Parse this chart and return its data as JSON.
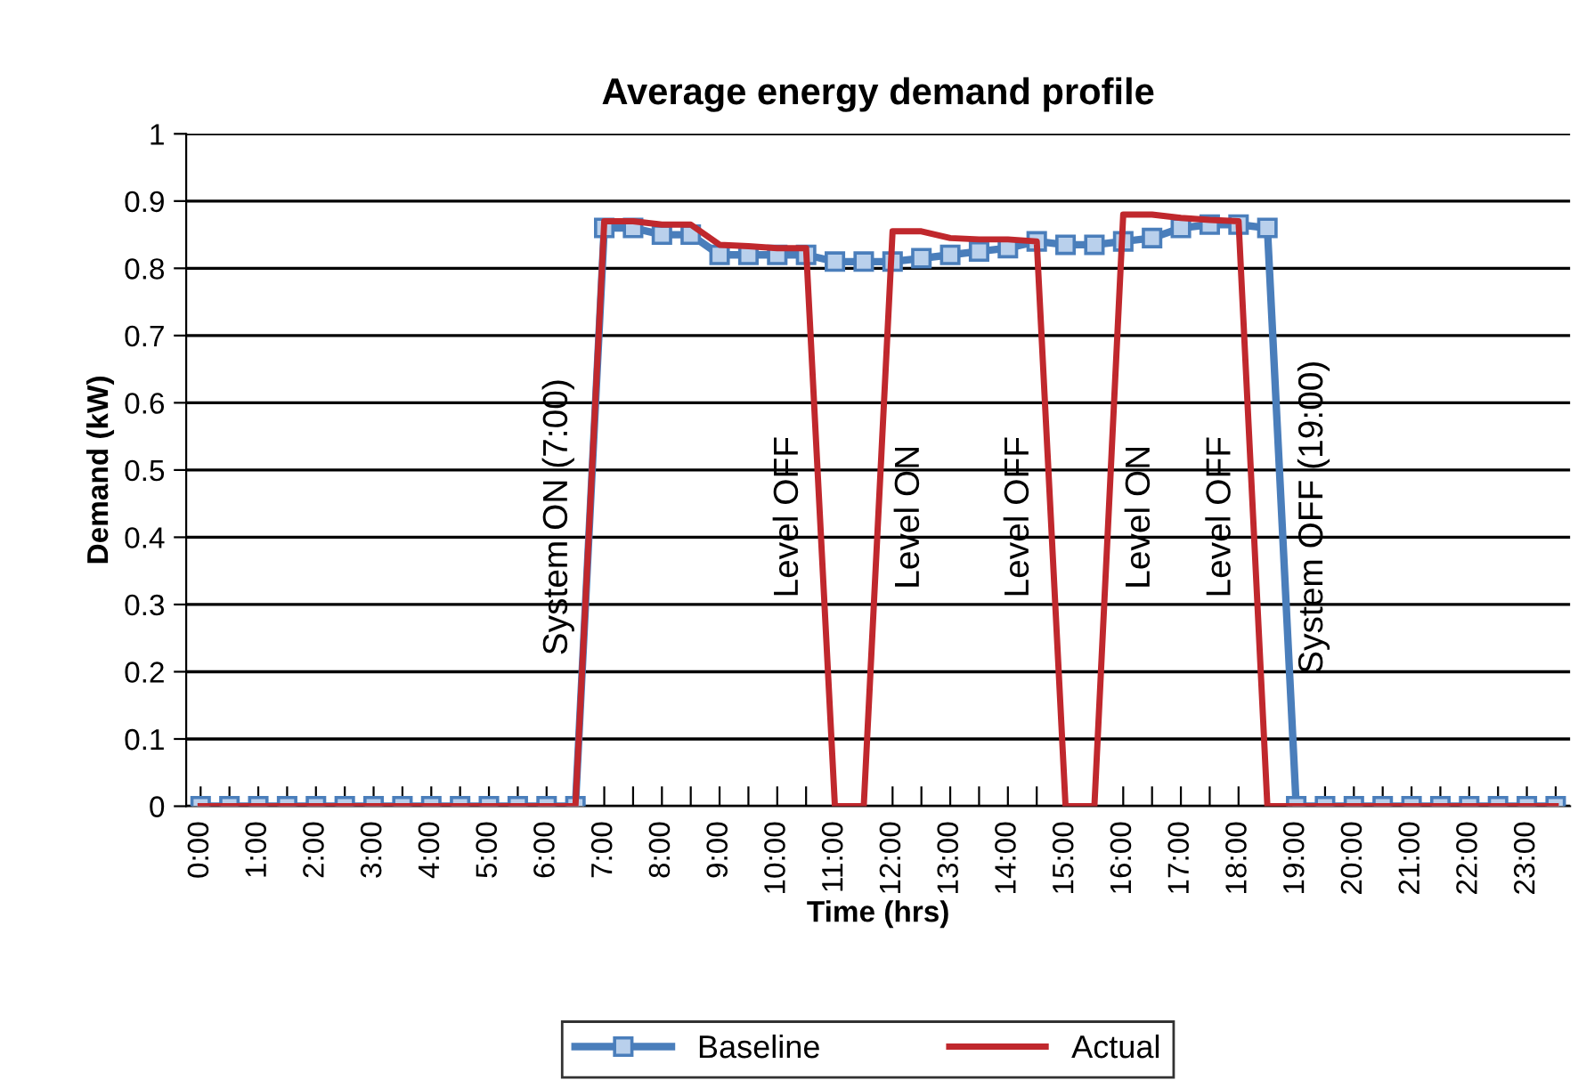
{
  "chart_data": {
    "type": "line",
    "title": "Average energy demand profile",
    "xlabel": "Time (hrs)",
    "ylabel": "Demand (kW)",
    "categories": [
      "0:00",
      null,
      "1:00",
      null,
      "2:00",
      null,
      "3:00",
      null,
      "4:00",
      null,
      "5:00",
      null,
      "6:00",
      null,
      "7:00",
      null,
      "8:00",
      null,
      "9:00",
      null,
      "10:00",
      null,
      "11:00",
      null,
      "12:00",
      null,
      "13:00",
      null,
      "14:00",
      null,
      "15:00",
      null,
      "16:00",
      null,
      "17:00",
      null,
      "18:00",
      null,
      "19:00",
      null,
      "20:00",
      null,
      "21:00",
      null,
      "22:00",
      null,
      "23:00",
      null
    ],
    "series": [
      {
        "name": "Baseline",
        "color": "#4a7ebb",
        "marker": "square",
        "values": [
          0,
          0,
          0,
          0,
          0,
          0,
          0,
          0,
          0,
          0,
          0,
          0,
          0,
          0,
          0.86,
          0.86,
          0.85,
          0.85,
          0.82,
          0.82,
          0.82,
          0.82,
          0.81,
          0.81,
          0.81,
          0.815,
          0.82,
          0.825,
          0.83,
          0.84,
          0.835,
          0.835,
          0.84,
          0.845,
          0.86,
          0.865,
          0.865,
          0.86,
          0,
          0,
          0,
          0,
          0,
          0,
          0,
          0,
          0,
          0
        ]
      },
      {
        "name": "Actual",
        "color": "#c0282d",
        "marker": "none",
        "values": [
          0,
          0,
          0,
          0,
          0,
          0,
          0,
          0,
          0,
          0,
          0,
          0,
          0,
          0,
          0.87,
          0.87,
          0.865,
          0.865,
          0.835,
          0.833,
          0.83,
          0.83,
          0,
          0,
          0.855,
          0.855,
          0.845,
          0.843,
          0.843,
          0.84,
          0,
          0,
          0.88,
          0.88,
          0.875,
          0.872,
          0.87,
          0,
          0,
          0,
          0,
          0,
          0,
          0,
          0,
          0,
          0,
          0
        ]
      }
    ],
    "ylim": [
      0,
      1
    ],
    "yticks": [
      0,
      0.1,
      0.2,
      0.3,
      0.4,
      0.5,
      0.6,
      0.7,
      0.8,
      0.9,
      1
    ],
    "grid": "y",
    "legend": "bottom",
    "line_style": "solid",
    "annotations": [
      "System ON (7:00)",
      "Level OFF",
      "Level ON",
      "Level OFF",
      "Level ON",
      "Level OFF",
      "System OFF (19:00)"
    ]
  }
}
